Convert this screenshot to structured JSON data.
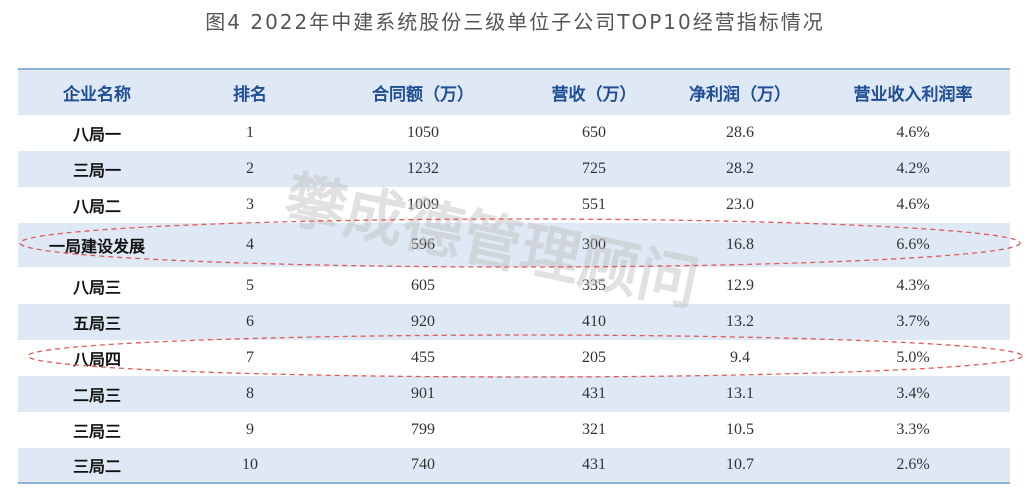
{
  "title": "图4   2022年中建系统股份三级单位子公司TOP10经营指标情况",
  "watermark": "攀成德管理顾问",
  "table": {
    "headers": [
      "企业名称",
      "排名",
      "合同额（万）",
      "营收（万）",
      "净利润（万）",
      "营业收入利润率"
    ],
    "rows": [
      [
        "八局一",
        "1",
        "1050",
        "650",
        "28.6",
        "4.6%"
      ],
      [
        "三局一",
        "2",
        "1232",
        "725",
        "28.2",
        "4.2%"
      ],
      [
        "八局二",
        "3",
        "1009",
        "551",
        "23.0",
        "4.6%"
      ],
      [
        "一局建设发展",
        "4",
        "596",
        "300",
        "16.8",
        "6.6%"
      ],
      [
        "八局三",
        "5",
        "605",
        "335",
        "12.9",
        "4.3%"
      ],
      [
        "五局三",
        "6",
        "920",
        "410",
        "13.2",
        "3.7%"
      ],
      [
        "八局四",
        "7",
        "455",
        "205",
        "9.4",
        "5.0%"
      ],
      [
        "二局三",
        "8",
        "901",
        "431",
        "13.1",
        "3.4%"
      ],
      [
        "三局三",
        "9",
        "799",
        "321",
        "10.5",
        "3.3%"
      ],
      [
        "三局二",
        "10",
        "740",
        "431",
        "10.7",
        "2.6%"
      ]
    ]
  }
}
